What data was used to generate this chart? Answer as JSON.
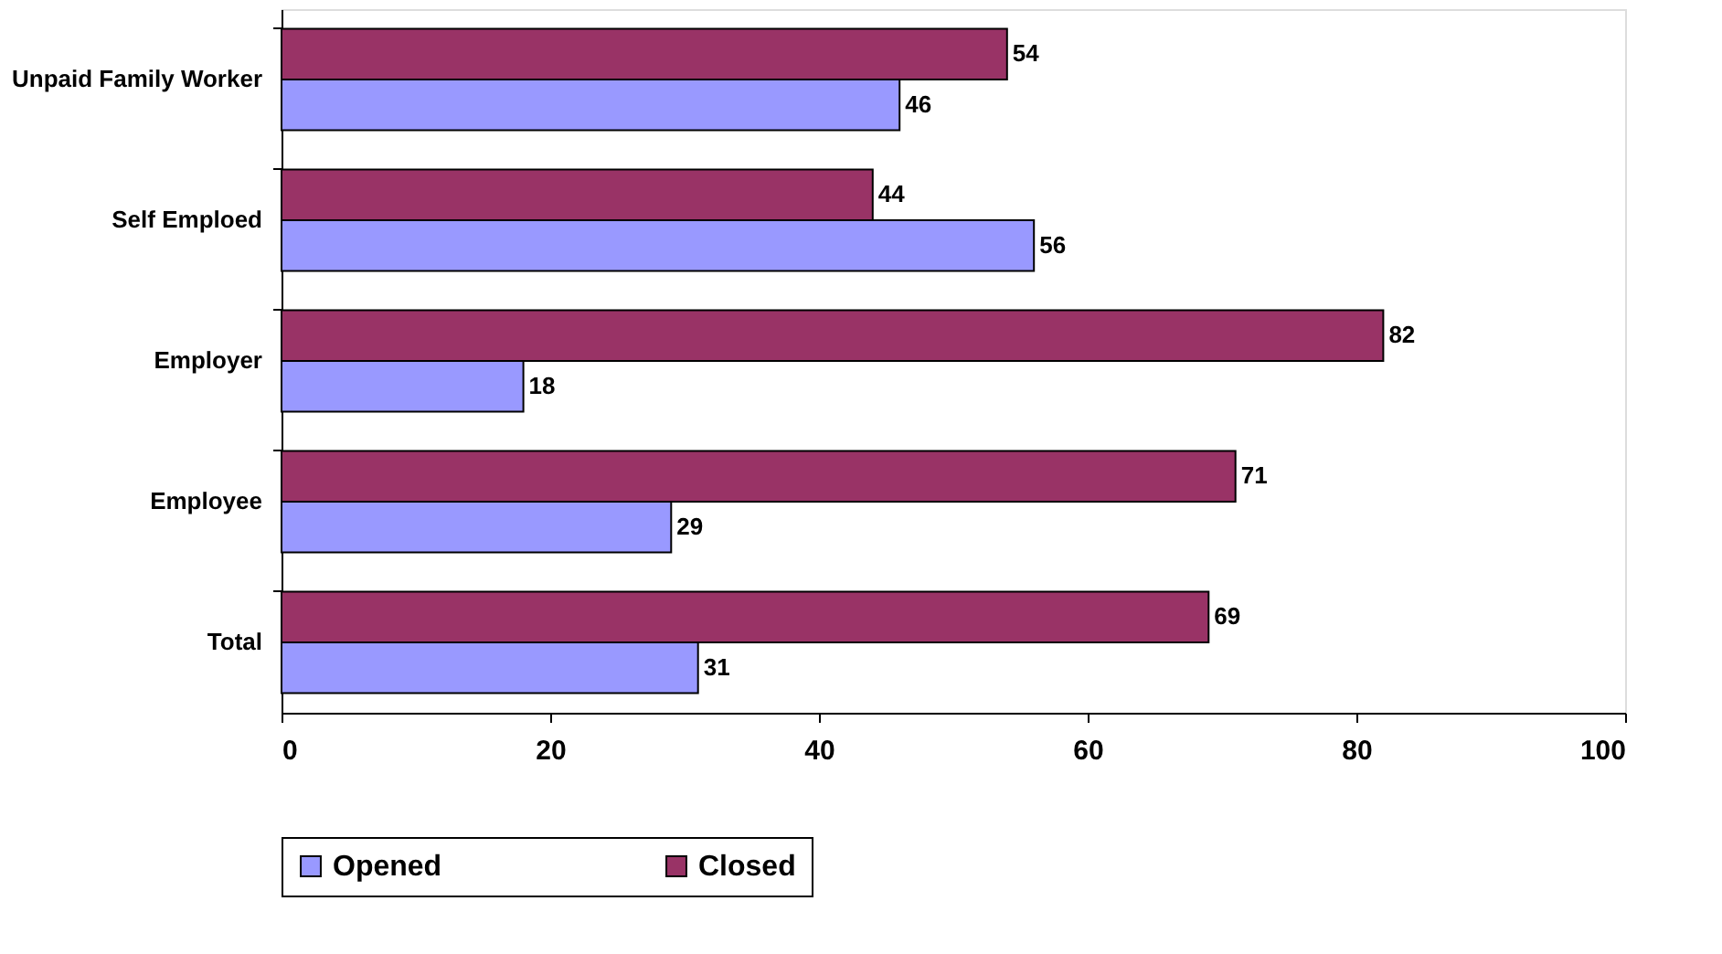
{
  "chart_data": {
    "type": "bar",
    "orientation": "horizontal",
    "categories": [
      "Unpaid Family Worker",
      "Self Emploed",
      "Employer",
      "Employee",
      "Total"
    ],
    "series": [
      {
        "name": "Opened",
        "color": "#9999ff",
        "values": [
          46,
          56,
          18,
          29,
          31
        ]
      },
      {
        "name": "Closed",
        "color": "#993366",
        "values": [
          54,
          44,
          82,
          71,
          69
        ]
      }
    ],
    "xlim": [
      0,
      100
    ],
    "xticks": [
      0,
      20,
      40,
      60,
      80,
      100
    ],
    "data_labels": true,
    "legend": "bottom",
    "grid": false
  }
}
